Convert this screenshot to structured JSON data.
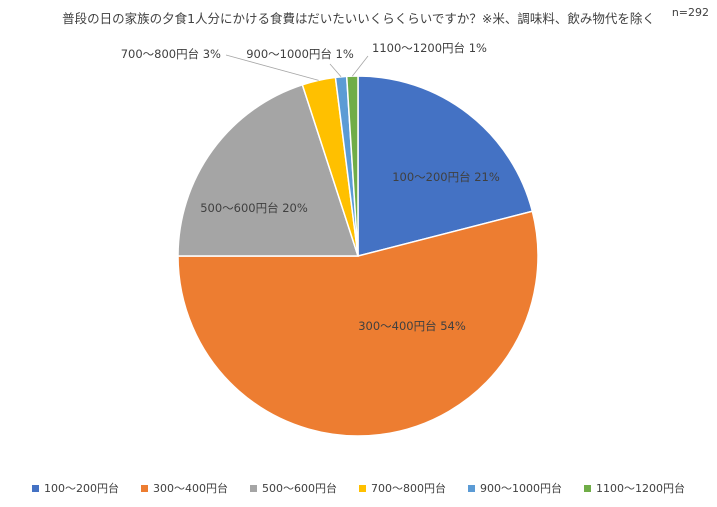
{
  "chart_data": {
    "type": "pie",
    "title": "普段の日の家族の夕食1人分にかける食費はだいたいいくらくらいですか？※米、調味料、飲み物代を除く",
    "note": "n=292",
    "categories": [
      "100〜200円台",
      "300〜400円台",
      "500〜600円台",
      "700〜800円台",
      "900〜1000円台",
      "1100〜1200円台"
    ],
    "values": [
      21,
      54,
      20,
      3,
      1,
      1
    ],
    "slice_labels": [
      "100〜200円台 21%",
      "300〜400円台 54%",
      "500〜600円台 20%",
      "700〜800円台 3%",
      "900〜1000円台 1%",
      "1100〜1200円台 1%"
    ],
    "colors": [
      "#4472C4",
      "#ED7D31",
      "#A5A5A5",
      "#FFC000",
      "#5B9BD5",
      "#70AD47"
    ],
    "legend_position": "bottom"
  }
}
